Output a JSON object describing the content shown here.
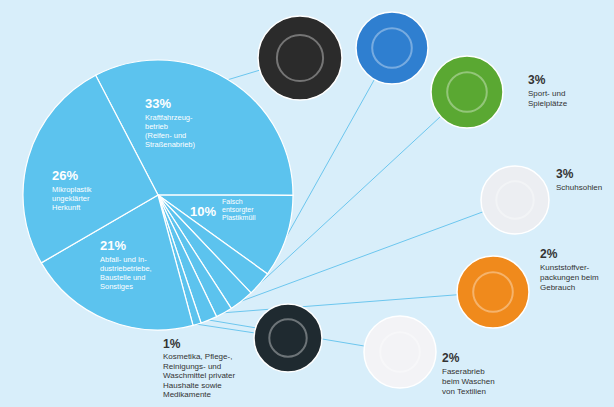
{
  "chart_data": {
    "type": "pie",
    "categories": [
      [
        "Kraftfahrzeug-",
        "betrieb",
        "(Reifen- und",
        "Straßenabrieb)"
      ],
      [
        "Falsch",
        "entsorgter",
        "Plastikmüll"
      ],
      [
        "Sport- und",
        "Spielplätze"
      ],
      [
        "Schuhsohlen"
      ],
      [
        "Kunststoffver-",
        "packungen beim",
        "Gebrauch"
      ],
      [
        "Faserabrieb",
        "beim Waschen",
        "von Textilien"
      ],
      [
        "Kosmetika, Pflege-,",
        "Reinigungs- und",
        "Waschmittel privater",
        "Haushalte sowie",
        "Medikamente"
      ],
      [
        "Abfall- und In-",
        "dustriebetriebe,",
        "Baustelle und",
        "Sonstiges"
      ],
      [
        "Mikroplastik",
        "ungeklärter",
        "Herkunft"
      ]
    ],
    "values": [
      33,
      10,
      3,
      3,
      2,
      2,
      1,
      21,
      26
    ],
    "value_labels": [
      "33%",
      "10%",
      "3%",
      "3%",
      "2%",
      "2%",
      "1%",
      "21%",
      "26%"
    ],
    "color": "#5cc3ee",
    "data_labels": true
  }
}
